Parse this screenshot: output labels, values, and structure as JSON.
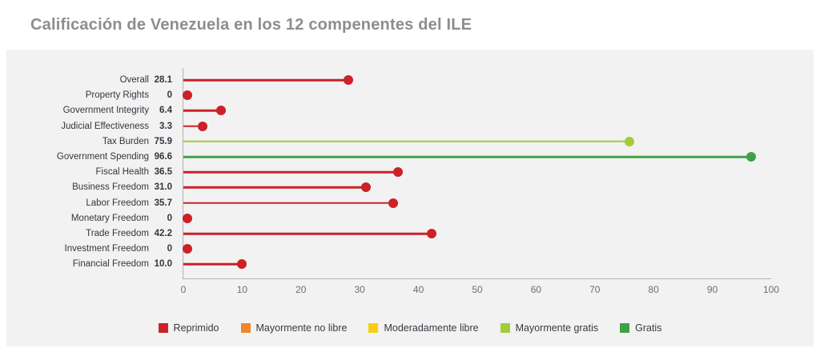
{
  "title": "Calificación de Venezuela en los 12 compenentes del ILE",
  "colors": {
    "red": "#cb2127",
    "orange": "#f1862d",
    "yellow": "#f7cf0f",
    "light_green": "#a2cc3a",
    "dark_green": "#42a147",
    "panel_bg": "#f2f2f2",
    "axis": "#b3b3b3",
    "title_text": "#8d8d8d",
    "label_text": "#35353f",
    "tick_text": "#6e6e6e"
  },
  "chart_data": {
    "type": "bar",
    "style": "horizontal-lollipop",
    "title": "Calificación de Venezuela en los 12 compenentes del ILE",
    "categories": [
      "Overall",
      "Property Rights",
      "Government Integrity",
      "Judicial Effectiveness",
      "Tax Burden",
      "Government Spending",
      "Fiscal Health",
      "Business Freedom",
      "Labor Freedom",
      "Monetary Freedom",
      "Trade Freedom",
      "Investment Freedom",
      "Financial Freedom"
    ],
    "values": [
      28.1,
      0,
      6.4,
      3.3,
      75.9,
      96.6,
      36.5,
      31.0,
      35.7,
      0,
      42.2,
      0,
      10.0
    ],
    "value_labels": [
      "28.1",
      "0",
      "6.4",
      "3.3",
      "75.9",
      "96.6",
      "36.5",
      "31.0",
      "35.7",
      "0",
      "42.2",
      "0",
      "10.0"
    ],
    "point_color_keys": [
      "red",
      "red",
      "red",
      "red",
      "light_green",
      "dark_green",
      "red",
      "red",
      "red",
      "red",
      "red",
      "red",
      "red"
    ],
    "xlabel": "",
    "ylabel": "",
    "xlim": [
      0,
      100
    ],
    "x_ticks": [
      0,
      10,
      20,
      30,
      40,
      50,
      60,
      70,
      80,
      90,
      100
    ],
    "grid": false,
    "legend_position": "bottom",
    "legend": [
      {
        "label": "Reprimido",
        "color_key": "red"
      },
      {
        "label": "Mayormente no libre",
        "color_key": "orange"
      },
      {
        "label": "Moderadamente libre",
        "color_key": "yellow"
      },
      {
        "label": "Mayormente gratis",
        "color_key": "light_green"
      },
      {
        "label": "Gratis",
        "color_key": "dark_green"
      }
    ]
  }
}
